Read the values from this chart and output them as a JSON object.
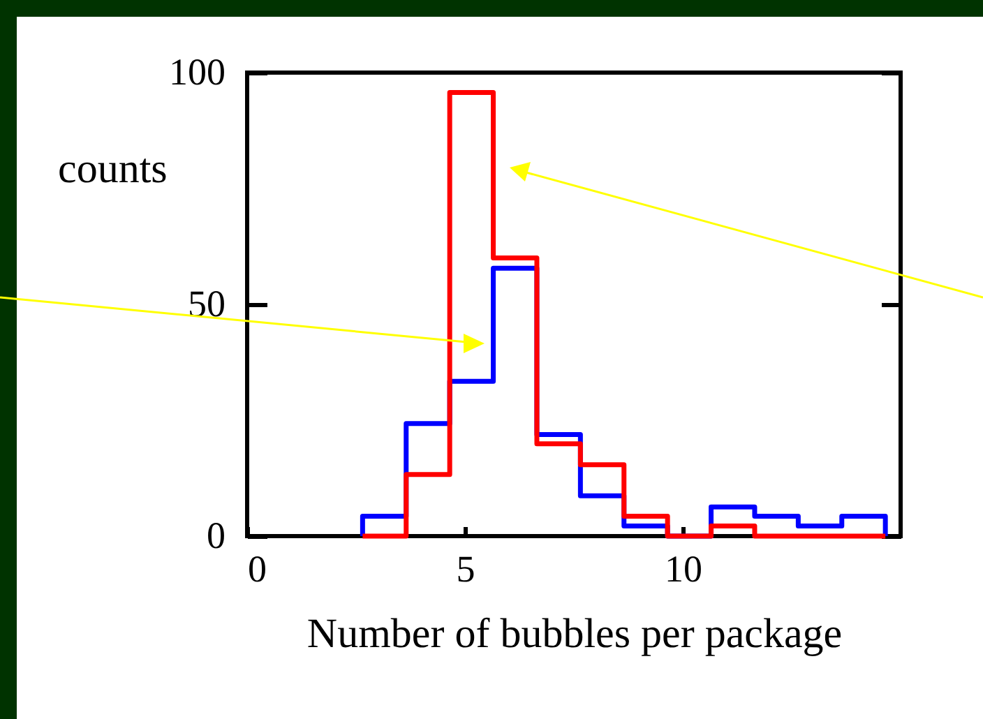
{
  "chart_data": {
    "type": "histogram",
    "xlabel": "Number of bubbles per package",
    "ylabel": "counts",
    "bins": [
      2.65,
      3.65,
      4.65,
      5.65,
      6.65,
      7.65,
      8.65,
      9.65,
      10.65,
      11.65,
      12.65,
      13.65,
      14.65
    ],
    "series": [
      {
        "color": "#0000ff",
        "values": [
          4.3,
          24.3,
          33.4,
          57.8,
          21.9,
          8.7,
          2.2,
          0,
          6.3,
          4.3,
          2.2,
          4.3
        ]
      },
      {
        "color": "#ff0000",
        "values": [
          0,
          13.3,
          95.7,
          60.0,
          19.9,
          15.4,
          4.3,
          0,
          2.2,
          0,
          0,
          0
        ]
      }
    ],
    "xlim": [
      0,
      15
    ],
    "xticks": [
      0,
      5,
      10
    ],
    "ylim": [
      0,
      100
    ],
    "yticks": [
      0,
      50,
      100
    ]
  }
}
